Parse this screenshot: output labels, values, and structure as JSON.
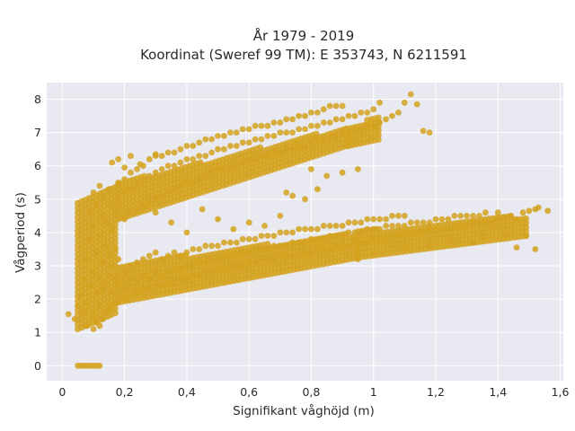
{
  "chart_data": {
    "type": "scatter",
    "title_line1": "År 1979 - 2019",
    "title_line2": "Koordinat (Sweref 99 TM): E 353743, N 6211591",
    "xlabel": "Signifikant våghöjd (m)",
    "ylabel": "Vågperiod (s)",
    "xlim": [
      -0.05,
      1.61
    ],
    "ylim": [
      -0.45,
      8.5
    ],
    "x_ticks": [
      0,
      0.2,
      0.4,
      0.6,
      0.8,
      1,
      1.2,
      1.4,
      1.6
    ],
    "x_tick_labels": [
      "0",
      "0,2",
      "0,4",
      "0,6",
      "0,8",
      "1",
      "1,2",
      "1,4",
      "1,6"
    ],
    "y_ticks": [
      0,
      1,
      2,
      3,
      4,
      5,
      6,
      7,
      8
    ],
    "y_tick_labels": [
      "0",
      "1",
      "2",
      "3",
      "4",
      "5",
      "6",
      "7",
      "8"
    ],
    "grid": true,
    "marker_color": "#d4a21f",
    "plot_bg": "#e9e9f2",
    "points": [
      [
        0.05,
        0
      ],
      [
        0.06,
        0
      ],
      [
        0.07,
        0
      ],
      [
        0.08,
        0
      ],
      [
        0.09,
        0
      ],
      [
        0.1,
        0
      ],
      [
        0.11,
        0
      ],
      [
        0.12,
        0
      ],
      [
        0.02,
        1.55
      ],
      [
        0.04,
        1.4
      ],
      [
        0.05,
        1.8
      ],
      [
        0.06,
        2.1
      ],
      [
        0.07,
        1.6
      ],
      [
        0.07,
        2.6
      ],
      [
        0.08,
        1.2
      ],
      [
        0.08,
        1.9
      ],
      [
        0.08,
        3.2
      ],
      [
        0.09,
        2.4
      ],
      [
        0.09,
        3.8
      ],
      [
        0.09,
        4.6
      ],
      [
        0.1,
        1.1
      ],
      [
        0.1,
        1.5
      ],
      [
        0.1,
        2.8
      ],
      [
        0.1,
        4.2
      ],
      [
        0.1,
        5.2
      ],
      [
        0.11,
        1.3
      ],
      [
        0.11,
        2.2
      ],
      [
        0.11,
        3.4
      ],
      [
        0.11,
        4.8
      ],
      [
        0.12,
        1.2
      ],
      [
        0.12,
        1.8
      ],
      [
        0.12,
        2.6
      ],
      [
        0.12,
        3.9
      ],
      [
        0.12,
        5.4
      ],
      [
        0.13,
        1.4
      ],
      [
        0.13,
        2.3
      ],
      [
        0.13,
        3.1
      ],
      [
        0.13,
        4.5
      ],
      [
        0.13,
        5.1
      ],
      [
        0.14,
        1.6
      ],
      [
        0.14,
        2.5
      ],
      [
        0.14,
        3.6
      ],
      [
        0.14,
        4.3
      ],
      [
        0.15,
        1.7
      ],
      [
        0.15,
        2.7
      ],
      [
        0.15,
        3.3
      ],
      [
        0.15,
        4.9
      ],
      [
        0.15,
        5.3
      ],
      [
        0.16,
        1.8
      ],
      [
        0.16,
        2.2
      ],
      [
        0.16,
        3.0
      ],
      [
        0.16,
        4.1
      ],
      [
        0.17,
        1.9
      ],
      [
        0.17,
        2.6
      ],
      [
        0.17,
        3.5
      ],
      [
        0.17,
        4.7
      ],
      [
        0.18,
        1.9
      ],
      [
        0.18,
        2.4
      ],
      [
        0.18,
        3.2
      ],
      [
        0.18,
        5.0
      ],
      [
        0.18,
        5.5
      ],
      [
        0.2,
        2.0
      ],
      [
        0.2,
        2.3
      ],
      [
        0.2,
        2.8
      ],
      [
        0.2,
        4.4
      ],
      [
        0.2,
        5.2
      ],
      [
        0.2,
        5.6
      ],
      [
        0.22,
        2.1
      ],
      [
        0.22,
        2.6
      ],
      [
        0.22,
        3.0
      ],
      [
        0.22,
        4.6
      ],
      [
        0.22,
        5.3
      ],
      [
        0.22,
        5.8
      ],
      [
        0.24,
        2.2
      ],
      [
        0.24,
        2.5
      ],
      [
        0.24,
        3.1
      ],
      [
        0.24,
        4.7
      ],
      [
        0.24,
        5.5
      ],
      [
        0.24,
        5.9
      ],
      [
        0.26,
        2.3
      ],
      [
        0.26,
        2.7
      ],
      [
        0.26,
        3.2
      ],
      [
        0.26,
        4.8
      ],
      [
        0.26,
        5.6
      ],
      [
        0.26,
        6.0
      ],
      [
        0.28,
        2.3
      ],
      [
        0.28,
        2.6
      ],
      [
        0.28,
        3.3
      ],
      [
        0.28,
        4.9
      ],
      [
        0.28,
        5.7
      ],
      [
        0.28,
        6.2
      ],
      [
        0.3,
        2.4
      ],
      [
        0.3,
        2.8
      ],
      [
        0.3,
        3.4
      ],
      [
        0.3,
        5.0
      ],
      [
        0.3,
        5.8
      ],
      [
        0.3,
        6.3
      ],
      [
        0.32,
        2.4
      ],
      [
        0.32,
        2.7
      ],
      [
        0.32,
        3.2
      ],
      [
        0.32,
        5.1
      ],
      [
        0.32,
        5.9
      ],
      [
        0.32,
        6.3
      ],
      [
        0.34,
        2.5
      ],
      [
        0.34,
        2.8
      ],
      [
        0.34,
        3.3
      ],
      [
        0.34,
        5.2
      ],
      [
        0.34,
        6.0
      ],
      [
        0.34,
        6.4
      ],
      [
        0.36,
        2.5
      ],
      [
        0.36,
        2.9
      ],
      [
        0.36,
        3.4
      ],
      [
        0.36,
        5.3
      ],
      [
        0.36,
        6.0
      ],
      [
        0.36,
        6.4
      ],
      [
        0.38,
        2.6
      ],
      [
        0.38,
        2.9
      ],
      [
        0.38,
        3.3
      ],
      [
        0.38,
        5.4
      ],
      [
        0.38,
        6.1
      ],
      [
        0.38,
        6.5
      ],
      [
        0.4,
        2.6
      ],
      [
        0.4,
        3.0
      ],
      [
        0.4,
        3.4
      ],
      [
        0.4,
        5.5
      ],
      [
        0.4,
        6.2
      ],
      [
        0.4,
        6.6
      ],
      [
        0.42,
        2.7
      ],
      [
        0.42,
        3.0
      ],
      [
        0.42,
        3.5
      ],
      [
        0.42,
        5.5
      ],
      [
        0.42,
        6.2
      ],
      [
        0.42,
        6.6
      ],
      [
        0.44,
        2.7
      ],
      [
        0.44,
        3.1
      ],
      [
        0.44,
        3.5
      ],
      [
        0.44,
        5.6
      ],
      [
        0.44,
        6.3
      ],
      [
        0.44,
        6.7
      ],
      [
        0.46,
        2.8
      ],
      [
        0.46,
        3.1
      ],
      [
        0.46,
        3.6
      ],
      [
        0.46,
        5.7
      ],
      [
        0.46,
        6.3
      ],
      [
        0.46,
        6.8
      ],
      [
        0.48,
        2.8
      ],
      [
        0.48,
        3.2
      ],
      [
        0.48,
        3.6
      ],
      [
        0.48,
        5.8
      ],
      [
        0.48,
        6.4
      ],
      [
        0.48,
        6.8
      ],
      [
        0.5,
        2.9
      ],
      [
        0.5,
        3.2
      ],
      [
        0.5,
        3.6
      ],
      [
        0.5,
        5.9
      ],
      [
        0.5,
        6.5
      ],
      [
        0.5,
        6.9
      ],
      [
        0.52,
        2.9
      ],
      [
        0.52,
        3.3
      ],
      [
        0.52,
        3.7
      ],
      [
        0.52,
        5.9
      ],
      [
        0.52,
        6.5
      ],
      [
        0.52,
        6.9
      ],
      [
        0.54,
        3.0
      ],
      [
        0.54,
        3.3
      ],
      [
        0.54,
        3.7
      ],
      [
        0.54,
        6.0
      ],
      [
        0.54,
        6.6
      ],
      [
        0.54,
        7.0
      ],
      [
        0.56,
        3.0
      ],
      [
        0.56,
        3.3
      ],
      [
        0.56,
        3.7
      ],
      [
        0.56,
        6.0
      ],
      [
        0.56,
        6.6
      ],
      [
        0.56,
        7.0
      ],
      [
        0.58,
        3.0
      ],
      [
        0.58,
        3.4
      ],
      [
        0.58,
        3.8
      ],
      [
        0.58,
        6.1
      ],
      [
        0.58,
        6.7
      ],
      [
        0.58,
        7.1
      ],
      [
        0.6,
        3.1
      ],
      [
        0.6,
        3.4
      ],
      [
        0.6,
        3.8
      ],
      [
        0.6,
        6.2
      ],
      [
        0.6,
        6.7
      ],
      [
        0.6,
        7.1
      ],
      [
        0.62,
        3.1
      ],
      [
        0.62,
        3.5
      ],
      [
        0.62,
        3.8
      ],
      [
        0.62,
        6.2
      ],
      [
        0.62,
        6.8
      ],
      [
        0.62,
        7.2
      ],
      [
        0.64,
        3.2
      ],
      [
        0.64,
        3.5
      ],
      [
        0.64,
        3.9
      ],
      [
        0.64,
        6.3
      ],
      [
        0.64,
        6.8
      ],
      [
        0.64,
        7.2
      ],
      [
        0.66,
        3.2
      ],
      [
        0.66,
        3.5
      ],
      [
        0.66,
        3.9
      ],
      [
        0.66,
        6.3
      ],
      [
        0.66,
        6.9
      ],
      [
        0.66,
        7.2
      ],
      [
        0.68,
        3.2
      ],
      [
        0.68,
        3.6
      ],
      [
        0.68,
        3.9
      ],
      [
        0.68,
        6.4
      ],
      [
        0.68,
        6.9
      ],
      [
        0.68,
        7.3
      ],
      [
        0.7,
        3.3
      ],
      [
        0.7,
        3.6
      ],
      [
        0.7,
        4.0
      ],
      [
        0.7,
        6.4
      ],
      [
        0.7,
        7.0
      ],
      [
        0.7,
        7.3
      ],
      [
        0.72,
        3.3
      ],
      [
        0.72,
        3.6
      ],
      [
        0.72,
        4.0
      ],
      [
        0.72,
        6.5
      ],
      [
        0.72,
        7.0
      ],
      [
        0.72,
        7.4
      ],
      [
        0.74,
        3.3
      ],
      [
        0.74,
        3.7
      ],
      [
        0.74,
        4.0
      ],
      [
        0.74,
        6.5
      ],
      [
        0.74,
        7.0
      ],
      [
        0.74,
        7.4
      ],
      [
        0.76,
        3.4
      ],
      [
        0.76,
        3.7
      ],
      [
        0.76,
        4.1
      ],
      [
        0.76,
        6.6
      ],
      [
        0.76,
        7.1
      ],
      [
        0.76,
        7.5
      ],
      [
        0.78,
        3.4
      ],
      [
        0.78,
        3.7
      ],
      [
        0.78,
        4.1
      ],
      [
        0.78,
        6.6
      ],
      [
        0.78,
        7.1
      ],
      [
        0.78,
        7.5
      ],
      [
        0.8,
        3.4
      ],
      [
        0.8,
        3.8
      ],
      [
        0.8,
        4.1
      ],
      [
        0.8,
        6.7
      ],
      [
        0.8,
        7.2
      ],
      [
        0.8,
        7.6
      ],
      [
        0.82,
        3.5
      ],
      [
        0.82,
        3.8
      ],
      [
        0.82,
        4.1
      ],
      [
        0.82,
        6.8
      ],
      [
        0.82,
        7.2
      ],
      [
        0.82,
        7.6
      ],
      [
        0.84,
        3.5
      ],
      [
        0.84,
        3.8
      ],
      [
        0.84,
        4.2
      ],
      [
        0.84,
        6.8
      ],
      [
        0.84,
        7.3
      ],
      [
        0.84,
        7.7
      ],
      [
        0.86,
        3.5
      ],
      [
        0.86,
        3.9
      ],
      [
        0.86,
        4.2
      ],
      [
        0.86,
        6.9
      ],
      [
        0.86,
        7.3
      ],
      [
        0.86,
        7.8
      ],
      [
        0.88,
        3.6
      ],
      [
        0.88,
        3.9
      ],
      [
        0.88,
        4.2
      ],
      [
        0.88,
        6.9
      ],
      [
        0.88,
        7.4
      ],
      [
        0.88,
        7.8
      ],
      [
        0.9,
        3.6
      ],
      [
        0.9,
        3.9
      ],
      [
        0.9,
        4.2
      ],
      [
        0.9,
        7.0
      ],
      [
        0.9,
        7.4
      ],
      [
        0.9,
        7.8
      ],
      [
        0.92,
        3.6
      ],
      [
        0.92,
        4.0
      ],
      [
        0.92,
        4.3
      ],
      [
        0.92,
        7.0
      ],
      [
        0.92,
        7.5
      ],
      [
        0.94,
        3.7
      ],
      [
        0.94,
        4.0
      ],
      [
        0.94,
        4.3
      ],
      [
        0.94,
        7.1
      ],
      [
        0.94,
        7.5
      ],
      [
        0.96,
        3.7
      ],
      [
        0.96,
        4.0
      ],
      [
        0.96,
        4.3
      ],
      [
        0.96,
        7.1
      ],
      [
        0.96,
        7.6
      ],
      [
        0.98,
        3.7
      ],
      [
        0.98,
        4.1
      ],
      [
        0.98,
        4.4
      ],
      [
        0.98,
        7.2
      ],
      [
        0.98,
        7.6
      ],
      [
        1.0,
        3.8
      ],
      [
        1.0,
        4.1
      ],
      [
        1.0,
        4.4
      ],
      [
        1.0,
        7.2
      ],
      [
        1.0,
        7.7
      ],
      [
        1.02,
        3.8
      ],
      [
        1.02,
        4.1
      ],
      [
        1.02,
        4.4
      ],
      [
        1.02,
        7.3
      ],
      [
        1.02,
        7.9
      ],
      [
        1.04,
        3.8
      ],
      [
        1.04,
        4.2
      ],
      [
        1.04,
        4.4
      ],
      [
        1.04,
        7.4
      ],
      [
        1.06,
        3.9
      ],
      [
        1.06,
        4.2
      ],
      [
        1.06,
        4.5
      ],
      [
        1.06,
        7.5
      ],
      [
        1.08,
        3.9
      ],
      [
        1.08,
        4.2
      ],
      [
        1.08,
        4.5
      ],
      [
        1.08,
        7.6
      ],
      [
        1.1,
        3.9
      ],
      [
        1.1,
        4.2
      ],
      [
        1.1,
        4.5
      ],
      [
        1.1,
        7.9
      ],
      [
        1.12,
        4.0
      ],
      [
        1.12,
        4.3
      ],
      [
        1.12,
        8.15
      ],
      [
        1.14,
        4.0
      ],
      [
        1.14,
        4.3
      ],
      [
        1.14,
        7.85
      ],
      [
        1.16,
        4.0
      ],
      [
        1.16,
        4.3
      ],
      [
        1.16,
        7.05
      ],
      [
        1.18,
        4.1
      ],
      [
        1.18,
        4.3
      ],
      [
        1.18,
        7.0
      ],
      [
        1.2,
        4.1
      ],
      [
        1.2,
        4.4
      ],
      [
        1.22,
        4.1
      ],
      [
        1.22,
        4.4
      ],
      [
        1.24,
        4.1
      ],
      [
        1.24,
        4.4
      ],
      [
        1.26,
        4.2
      ],
      [
        1.26,
        4.5
      ],
      [
        1.28,
        4.2
      ],
      [
        1.28,
        4.5
      ],
      [
        1.3,
        4.2
      ],
      [
        1.3,
        4.5
      ],
      [
        1.32,
        4.3
      ],
      [
        1.32,
        4.5
      ],
      [
        1.34,
        4.3
      ],
      [
        1.34,
        4.5
      ],
      [
        1.36,
        4.3
      ],
      [
        1.36,
        4.6
      ],
      [
        1.38,
        4.3
      ],
      [
        1.4,
        4.4
      ],
      [
        1.4,
        4.6
      ],
      [
        1.42,
        4.45
      ],
      [
        1.44,
        4.5
      ],
      [
        1.46,
        4.4
      ],
      [
        1.48,
        4.6
      ],
      [
        1.49,
        3.9
      ],
      [
        1.5,
        4.65
      ],
      [
        1.52,
        4.7
      ],
      [
        1.53,
        4.75
      ],
      [
        1.56,
        4.65
      ],
      [
        0.16,
        6.1
      ],
      [
        0.18,
        6.2
      ],
      [
        0.2,
        5.95
      ],
      [
        0.22,
        6.3
      ],
      [
        0.25,
        6.05
      ],
      [
        0.3,
        6.35
      ],
      [
        0.8,
        5.9
      ],
      [
        0.85,
        5.7
      ],
      [
        0.9,
        5.8
      ],
      [
        0.95,
        5.9
      ],
      [
        0.72,
        5.2
      ],
      [
        0.74,
        5.1
      ],
      [
        0.78,
        5.0
      ],
      [
        0.82,
        5.3
      ],
      [
        0.5,
        4.4
      ],
      [
        0.55,
        4.1
      ],
      [
        0.6,
        4.3
      ],
      [
        0.65,
        4.2
      ],
      [
        0.7,
        4.5
      ],
      [
        0.4,
        4.0
      ],
      [
        0.35,
        4.3
      ],
      [
        0.3,
        4.6
      ],
      [
        0.45,
        4.7
      ],
      [
        1.18,
        3.6
      ],
      [
        1.25,
        3.8
      ],
      [
        1.35,
        3.9
      ],
      [
        1.42,
        3.9
      ],
      [
        1.46,
        3.55
      ],
      [
        1.52,
        3.5
      ],
      [
        1.32,
        3.7
      ],
      [
        1.1,
        3.55
      ],
      [
        1.0,
        3.35
      ],
      [
        0.95,
        3.2
      ]
    ]
  }
}
